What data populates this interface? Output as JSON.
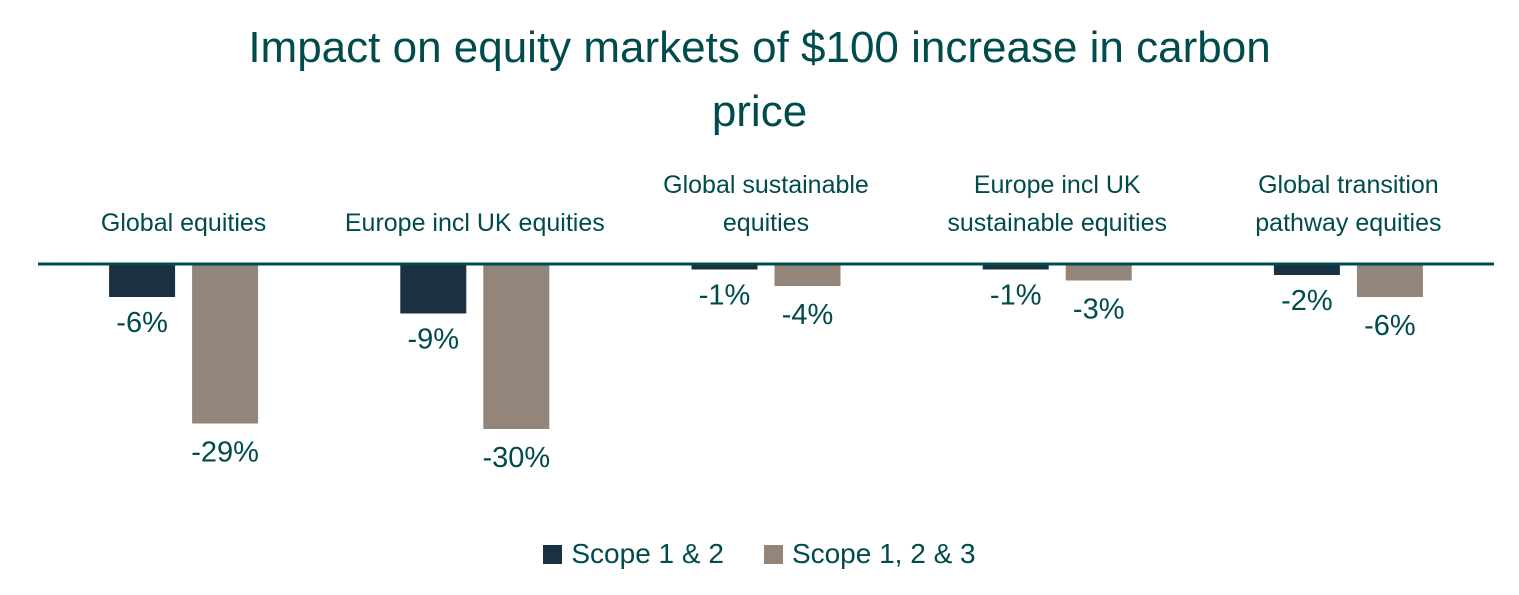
{
  "chart_data": {
    "type": "bar",
    "title": "Impact on equity markets of $100 increase in carbon price",
    "title_lines": [
      "Impact on equity markets of $100 increase in carbon",
      "price"
    ],
    "categories": [
      "Global equities",
      "Europe incl UK equities",
      "Global sustainable equities",
      "Europe incl UK sustainable equities",
      "Global transition pathway equities"
    ],
    "category_label_lines": [
      [
        "Global equities"
      ],
      [
        "Europe incl UK equities"
      ],
      [
        "Global sustainable",
        "equities"
      ],
      [
        "Europe incl UK",
        "sustainable equities"
      ],
      [
        "Global transition",
        "pathway equities"
      ]
    ],
    "series": [
      {
        "name": "Scope 1 & 2",
        "color": "#1b3040",
        "values": [
          -6,
          -9,
          -1,
          -1,
          -2
        ],
        "labels": [
          "-6%",
          "-9%",
          "-1%",
          "-1%",
          "-2%"
        ]
      },
      {
        "name": "Scope 1, 2 & 3",
        "color": "#94857b",
        "values": [
          -29,
          -30,
          -4,
          -3,
          -6
        ],
        "labels": [
          "-29%",
          "-30%",
          "-4%",
          "-3%",
          "-6%"
        ]
      }
    ],
    "xlabel": "",
    "ylabel": "",
    "ylim": [
      -30,
      0
    ],
    "grid": false,
    "legend_position": "bottom",
    "axis_color": "#004b4b",
    "text_color": "#004b4b"
  }
}
